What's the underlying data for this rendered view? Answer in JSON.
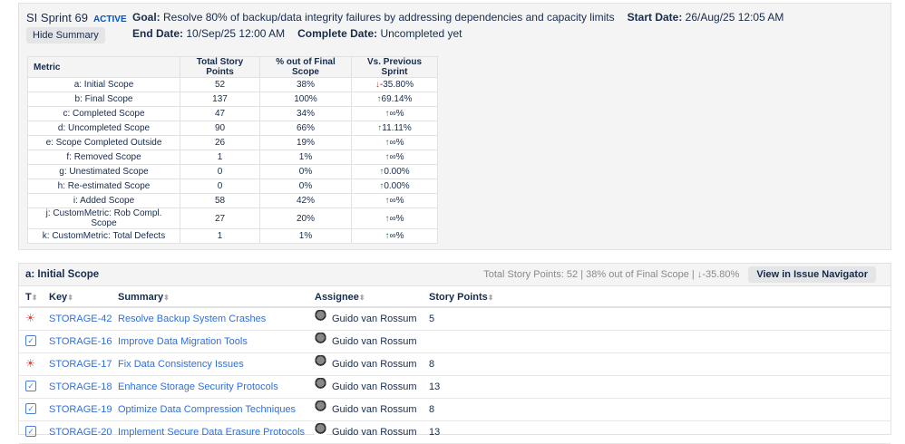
{
  "sprint": {
    "name": "SI Sprint 69",
    "status": "ACTIVE",
    "hide_label": "Hide Summary",
    "goal_label": "Goal:",
    "goal": "Resolve 80% of backup/data integrity failures by addressing dependencies and capacity limits",
    "start_label": "Start Date:",
    "start": "26/Aug/25 12:05 AM",
    "end_label": "End Date:",
    "end": "10/Sep/25 12:00 AM",
    "complete_label": "Complete Date:",
    "complete": "Uncompleted yet"
  },
  "metrics": {
    "headers": [
      "Metric",
      "Total Story Points",
      "% out of Final Scope",
      "Vs. Previous Sprint"
    ],
    "rows": [
      {
        "m": "a: Initial Scope",
        "p": "52",
        "pct": "38%",
        "dir": "down",
        "vs": "-35.80%"
      },
      {
        "m": "b: Final Scope",
        "p": "137",
        "pct": "100%",
        "dir": "up",
        "vs": "69.14%"
      },
      {
        "m": "c: Completed Scope",
        "p": "47",
        "pct": "34%",
        "dir": "up",
        "vs": "∞%"
      },
      {
        "m": "d: Uncompleted Scope",
        "p": "90",
        "pct": "66%",
        "dir": "up",
        "vs": "11.11%"
      },
      {
        "m": "e: Scope Completed Outside",
        "p": "26",
        "pct": "19%",
        "dir": "up",
        "vs": "∞%"
      },
      {
        "m": "f: Removed Scope",
        "p": "1",
        "pct": "1%",
        "dir": "up",
        "vs": "∞%"
      },
      {
        "m": "g: Unestimated Scope",
        "p": "0",
        "pct": "0%",
        "dir": "up",
        "vs": "0.00%"
      },
      {
        "m": "h: Re-estimated Scope",
        "p": "0",
        "pct": "0%",
        "dir": "up",
        "vs": "0.00%"
      },
      {
        "m": "i: Added Scope",
        "p": "58",
        "pct": "42%",
        "dir": "up",
        "vs": "∞%"
      },
      {
        "m": "j: CustomMetric: Rob Compl. Scope",
        "p": "27",
        "pct": "20%",
        "dir": "up",
        "vs": "∞%"
      },
      {
        "m": "k: CustomMetric: Total Defects",
        "p": "1",
        "pct": "1%",
        "dir": "up",
        "vs": "∞%"
      }
    ]
  },
  "issues": {
    "title": "a: Initial Scope",
    "stats": "Total Story Points: 52 | 38% out of Final Scope | ↓-35.80%",
    "nav_label": "View in Issue Navigator",
    "columns": [
      "T",
      "Key",
      "Summary",
      "Assignee",
      "Story Points"
    ],
    "rows": [
      {
        "type": "bug",
        "key": "STORAGE-42",
        "summary": "Resolve Backup System Crashes",
        "assignee": "Guido van Rossum",
        "points": "5"
      },
      {
        "type": "task",
        "key": "STORAGE-16",
        "summary": "Improve Data Migration Tools",
        "assignee": "Guido van Rossum",
        "points": ""
      },
      {
        "type": "bug",
        "key": "STORAGE-17",
        "summary": "Fix Data Consistency Issues",
        "assignee": "Guido van Rossum",
        "points": "8"
      },
      {
        "type": "task",
        "key": "STORAGE-18",
        "summary": "Enhance Storage Security Protocols",
        "assignee": "Guido van Rossum",
        "points": "13"
      },
      {
        "type": "task",
        "key": "STORAGE-19",
        "summary": "Optimize Data Compression Techniques",
        "assignee": "Guido van Rossum",
        "points": "8"
      },
      {
        "type": "task",
        "key": "STORAGE-20",
        "summary": "Implement Secure Data Erasure Protocols",
        "assignee": "Guido van Rossum",
        "points": "13"
      }
    ]
  }
}
